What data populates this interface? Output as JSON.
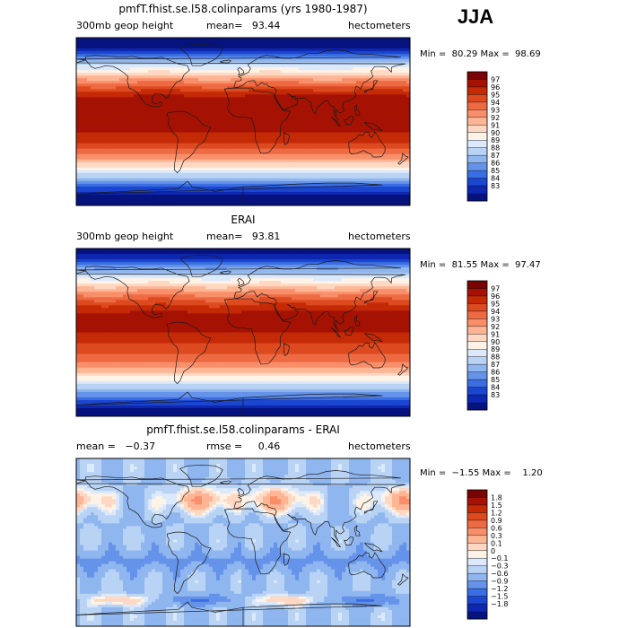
{
  "season": "JJA",
  "panels": [
    {
      "title": "pmfT.fhist.se.l58.colinparams (yrs 1980-1987)",
      "variable": "300mb geop height",
      "left_stat": "",
      "mid_stat": "mean=   93.44",
      "units": "hectometers",
      "min_max": "Min =  80.29 Max =  98.69",
      "colorbar_labels": [
        "97",
        "96",
        "95",
        "94",
        "93",
        "92",
        "91",
        "90",
        "89",
        "88",
        "87",
        "86",
        "85",
        "84",
        "83"
      ],
      "colorbar_colors": [
        "#7a0403",
        "#a51203",
        "#c52a06",
        "#dd4a20",
        "#ee6a42",
        "#f88f6a",
        "#fdb594",
        "#fed8c2",
        "#fff2e6",
        "#dbe9fb",
        "#b9d3f5",
        "#8fb6ef",
        "#6593ea",
        "#3b6ee2",
        "#1b46d2",
        "#0d27b0",
        "#06137e"
      ],
      "field": "abs",
      "field_params": {
        "mean": 93.44,
        "min": 80.29,
        "max": 98.69
      }
    },
    {
      "title": "ERAI",
      "variable": "300mb geop height",
      "left_stat": "",
      "mid_stat": "mean=   93.81",
      "units": "hectometers",
      "min_max": "Min =  81.55 Max =  97.47",
      "colorbar_labels": [
        "97",
        "96",
        "95",
        "94",
        "93",
        "92",
        "91",
        "90",
        "89",
        "88",
        "87",
        "86",
        "85",
        "84",
        "83"
      ],
      "colorbar_colors": [
        "#7a0403",
        "#a51203",
        "#c52a06",
        "#dd4a20",
        "#ee6a42",
        "#f88f6a",
        "#fdb594",
        "#fed8c2",
        "#fff2e6",
        "#dbe9fb",
        "#b9d3f5",
        "#8fb6ef",
        "#6593ea",
        "#3b6ee2",
        "#1b46d2",
        "#0d27b0",
        "#06137e"
      ],
      "field": "abs",
      "field_params": {
        "mean": 93.81,
        "min": 81.55,
        "max": 97.47
      }
    },
    {
      "title": "pmfT.fhist.se.l58.colinparams - ERAI",
      "variable": "",
      "left_stat": "mean =   −0.37",
      "mid_stat": "rmse =     0.46",
      "units": "hectometers",
      "min_max": "Min =  −1.55 Max =    1.20",
      "colorbar_labels": [
        "1.8",
        "1.5",
        "1.2",
        "0.9",
        "0.6",
        "0.3",
        "0.1",
        "0",
        "−0.1",
        "−0.3",
        "−0.6",
        "−0.9",
        "−1.2",
        "−1.5",
        "−1.8"
      ],
      "colorbar_colors": [
        "#7a0403",
        "#a51203",
        "#c52a06",
        "#dd4a20",
        "#ee6a42",
        "#f88f6a",
        "#fdb594",
        "#fed8c2",
        "#fff2e6",
        "#dbe9fb",
        "#b9d3f5",
        "#8fb6ef",
        "#6593ea",
        "#3b6ee2",
        "#1b46d2",
        "#0d27b0",
        "#06137e"
      ],
      "field": "diff",
      "field_params": {
        "mean": -0.37,
        "rmse": 0.46,
        "min": -1.55,
        "max": 1.2
      }
    }
  ]
}
